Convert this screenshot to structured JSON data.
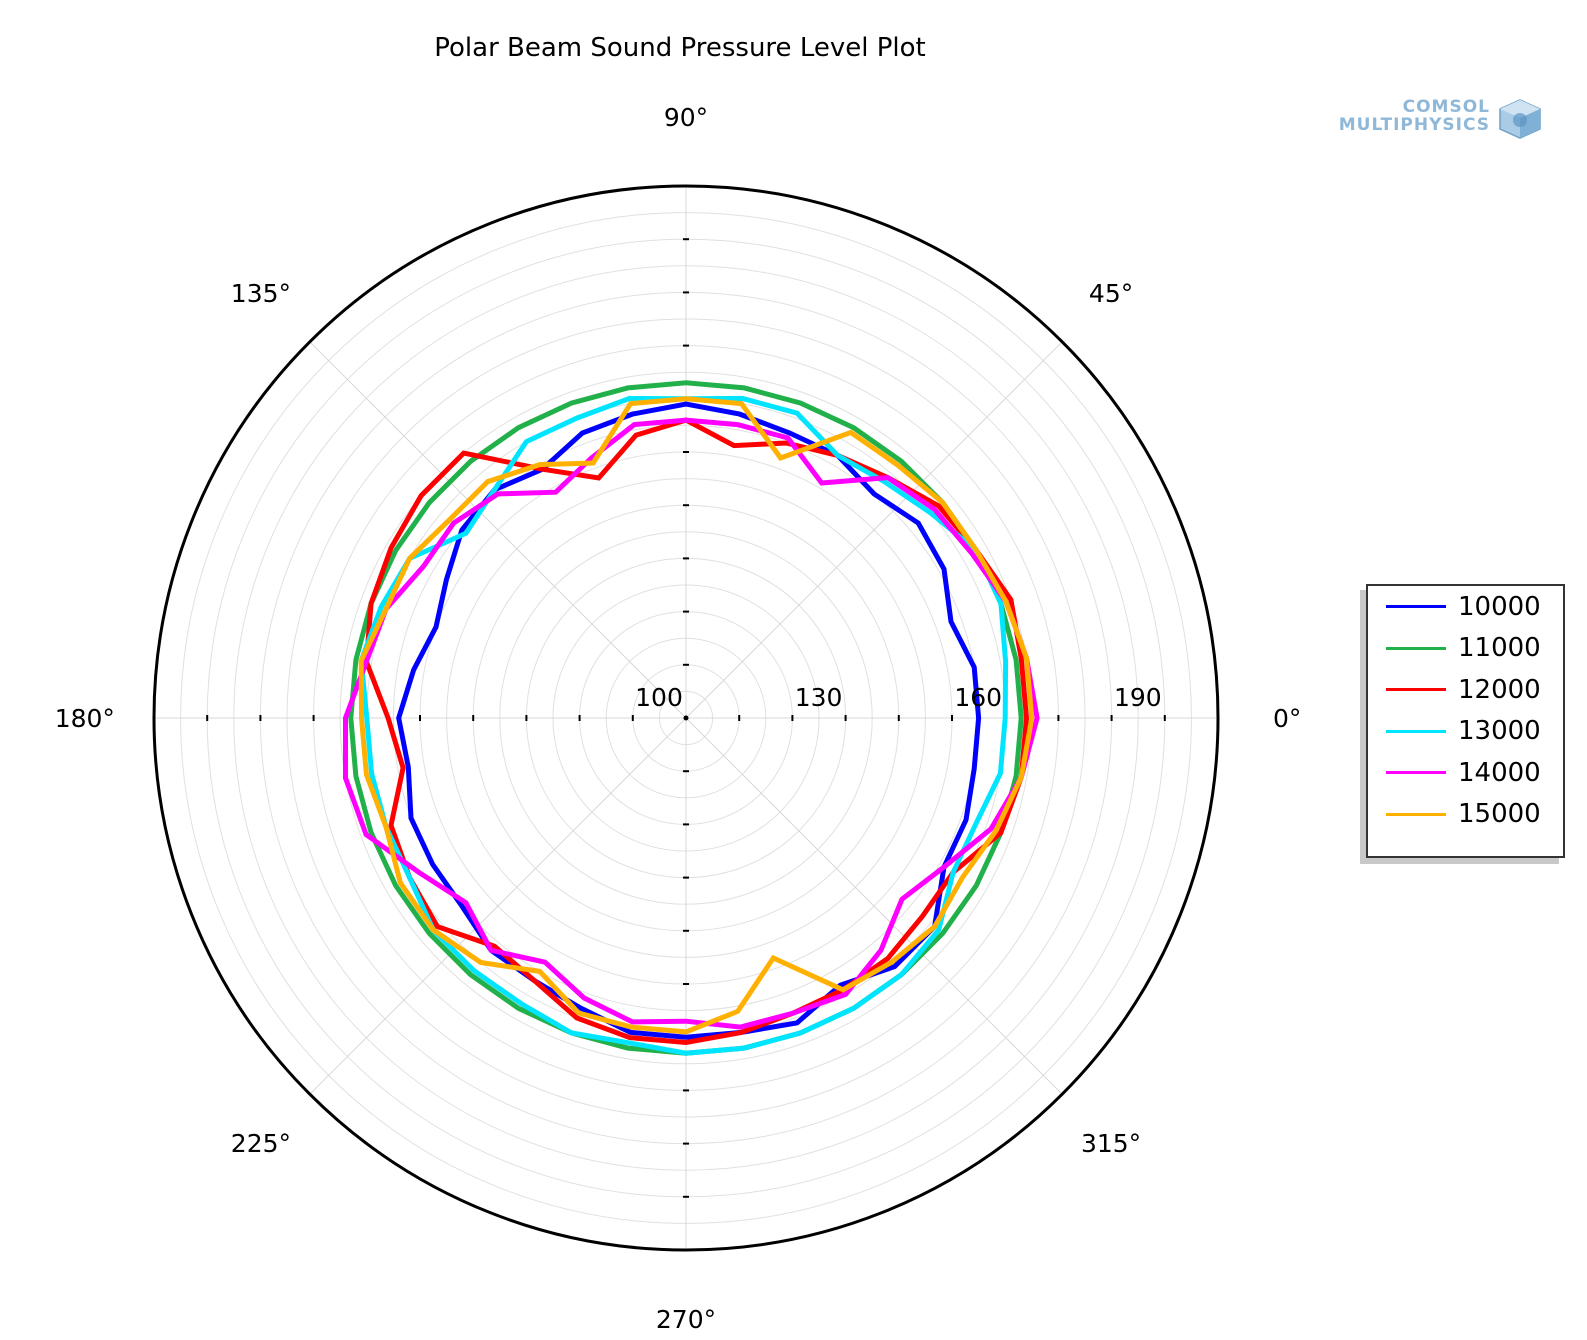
{
  "title": "Polar Beam Sound Pressure Level Plot",
  "logo": {
    "line1": "COMSOL",
    "line2": "MULTIPHYSICS",
    "icon": "comsol-cube-icon"
  },
  "chart_data": {
    "type": "line",
    "coordinate_system": "polar",
    "title": "Polar Beam Sound Pressure Level Plot",
    "angle_unit": "deg",
    "angle_ticks": [
      0,
      45,
      90,
      135,
      180,
      225,
      270,
      315
    ],
    "angle_tick_labels": [
      "0°",
      "45°",
      "90°",
      "135°",
      "180°",
      "225°",
      "270°",
      "315°"
    ],
    "radial_range": [
      100,
      200
    ],
    "radial_tick_values": [
      100,
      130,
      160,
      190
    ],
    "radial_tick_labels": [
      "100",
      "130",
      "160",
      "190"
    ],
    "grid": true,
    "legend_position": "right",
    "angles": [
      0,
      10,
      20,
      30,
      40,
      50,
      60,
      70,
      80,
      90,
      100,
      110,
      120,
      130,
      140,
      150,
      160,
      170,
      180,
      190,
      200,
      210,
      220,
      230,
      240,
      250,
      260,
      270,
      280,
      290,
      300,
      310,
      320,
      330,
      340,
      350
    ],
    "series": [
      {
        "name": "10000",
        "color": "#0000ff",
        "values": [
          155,
          155,
          153,
          156,
          157,
          155,
          157,
          157,
          158,
          159,
          158,
          157,
          154,
          156,
          155,
          152,
          150,
          152,
          154,
          153,
          155,
          155,
          155,
          157,
          157,
          158,
          160,
          160,
          160,
          161,
          158,
          161,
          161,
          156,
          156,
          155
        ]
      },
      {
        "name": "11000",
        "color": "#22b04a",
        "values": [
          163,
          163,
          163,
          163,
          163,
          163,
          163,
          163,
          163,
          163,
          163,
          163,
          163,
          163,
          163,
          163,
          163,
          163,
          163,
          163,
          163,
          163,
          163,
          163,
          163,
          163,
          163,
          163,
          163,
          163,
          163,
          163,
          163,
          163,
          163,
          163
        ]
      },
      {
        "name": "12000",
        "color": "#ff0000",
        "values": [
          164,
          164,
          165,
          163,
          162,
          159,
          157,
          155,
          152,
          156,
          154,
          148,
          154,
          165,
          165,
          164,
          163,
          161,
          156,
          154,
          159,
          160,
          161,
          156,
          157,
          160,
          161,
          161,
          160,
          159,
          159,
          159,
          158,
          158,
          163,
          164
        ]
      },
      {
        "name": "13000",
        "color": "#00e5ff",
        "values": [
          160,
          161,
          163,
          163,
          160,
          158,
          157,
          161,
          161,
          160,
          161,
          160,
          160,
          156,
          154,
          160,
          161,
          162,
          160,
          160,
          160,
          160,
          162,
          162,
          162,
          163,
          162,
          163,
          163,
          163,
          163,
          163,
          162,
          158,
          158,
          160
        ]
      },
      {
        "name": "14000",
        "color": "#ff00ff",
        "values": [
          166,
          165,
          164,
          162,
          161,
          159,
          151,
          156,
          156,
          156,
          156,
          152,
          149,
          155,
          157,
          157,
          160,
          161,
          164,
          165,
          164,
          158,
          154,
          157,
          153,
          156,
          158,
          157,
          159,
          159,
          160,
          157,
          153,
          156,
          161,
          164
        ]
      },
      {
        "name": "15000",
        "color": "#ffb000",
        "values": [
          165,
          165,
          164,
          163,
          163,
          162,
          162,
          152,
          160,
          160,
          160,
          151,
          155,
          158,
          158,
          160,
          160,
          162,
          161,
          161,
          160,
          162,
          162,
          160,
          155,
          159,
          159,
          159,
          156,
          148,
          159,
          160,
          161,
          160,
          162,
          164
        ]
      }
    ]
  }
}
